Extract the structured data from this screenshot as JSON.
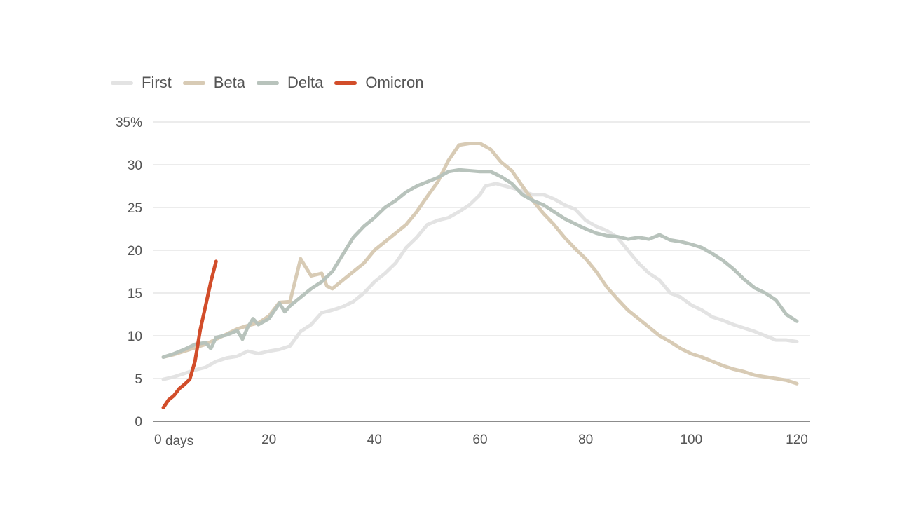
{
  "chart_data": {
    "type": "line",
    "xlim": [
      0,
      120
    ],
    "ylim": [
      0,
      35
    ],
    "x_ticks": [
      0,
      20,
      40,
      60,
      80,
      100,
      120
    ],
    "x_tick_labels": [
      "0",
      "20",
      "40",
      "60",
      "80",
      "100",
      "120"
    ],
    "x_unit": "days",
    "y_ticks": [
      0,
      5,
      10,
      15,
      20,
      25,
      30,
      35
    ],
    "y_tick_labels": [
      "0",
      "5",
      "10",
      "15",
      "20",
      "25",
      "30",
      "35%"
    ],
    "grid": "horizontal",
    "legend_position": "top-left",
    "series": [
      {
        "name": "First",
        "color": "#e3e3e3",
        "points": [
          [
            0,
            4.9
          ],
          [
            2,
            5.2
          ],
          [
            4,
            5.6
          ],
          [
            6,
            6
          ],
          [
            8,
            6.3
          ],
          [
            10,
            7
          ],
          [
            12,
            7.4
          ],
          [
            14,
            7.6
          ],
          [
            16,
            8.2
          ],
          [
            18,
            7.9
          ],
          [
            20,
            8.2
          ],
          [
            22,
            8.4
          ],
          [
            24,
            8.8
          ],
          [
            26,
            10.5
          ],
          [
            28,
            11.3
          ],
          [
            30,
            12.7
          ],
          [
            32,
            13
          ],
          [
            34,
            13.4
          ],
          [
            36,
            14
          ],
          [
            38,
            15
          ],
          [
            40,
            16.3
          ],
          [
            42,
            17.3
          ],
          [
            44,
            18.5
          ],
          [
            46,
            20.3
          ],
          [
            48,
            21.5
          ],
          [
            50,
            23
          ],
          [
            52,
            23.5
          ],
          [
            54,
            23.8
          ],
          [
            56,
            24.5
          ],
          [
            58,
            25.3
          ],
          [
            60,
            26.5
          ],
          [
            61,
            27.5
          ],
          [
            63,
            27.8
          ],
          [
            66,
            27.3
          ],
          [
            70,
            26.5
          ],
          [
            72,
            26.5
          ],
          [
            74,
            26
          ],
          [
            76,
            25.3
          ],
          [
            78,
            24.8
          ],
          [
            80,
            23.5
          ],
          [
            82,
            22.8
          ],
          [
            84,
            22.3
          ],
          [
            86,
            21.5
          ],
          [
            88,
            20
          ],
          [
            90,
            18.5
          ],
          [
            92,
            17.3
          ],
          [
            94,
            16.5
          ],
          [
            96,
            15
          ],
          [
            98,
            14.5
          ],
          [
            100,
            13.6
          ],
          [
            102,
            13
          ],
          [
            104,
            12.2
          ],
          [
            106,
            11.8
          ],
          [
            108,
            11.3
          ],
          [
            110,
            10.9
          ],
          [
            112,
            10.5
          ],
          [
            114,
            10
          ],
          [
            116,
            9.5
          ],
          [
            118,
            9.5
          ],
          [
            120,
            9.3
          ]
        ]
      },
      {
        "name": "Beta",
        "color": "#d8cbb5",
        "points": [
          [
            0,
            7.5
          ],
          [
            2,
            7.8
          ],
          [
            4,
            8.2
          ],
          [
            6,
            8.6
          ],
          [
            8,
            9
          ],
          [
            10,
            9.6
          ],
          [
            12,
            10.2
          ],
          [
            14,
            10.8
          ],
          [
            16,
            11.2
          ],
          [
            18,
            11.5
          ],
          [
            20,
            12.3
          ],
          [
            22,
            13.9
          ],
          [
            24,
            14
          ],
          [
            26,
            19
          ],
          [
            28,
            17
          ],
          [
            30,
            17.3
          ],
          [
            31,
            15.8
          ],
          [
            32,
            15.5
          ],
          [
            34,
            16.5
          ],
          [
            36,
            17.5
          ],
          [
            38,
            18.5
          ],
          [
            40,
            20
          ],
          [
            42,
            21
          ],
          [
            44,
            22
          ],
          [
            46,
            23
          ],
          [
            48,
            24.5
          ],
          [
            50,
            26.3
          ],
          [
            52,
            28
          ],
          [
            54,
            30.5
          ],
          [
            56,
            32.3
          ],
          [
            58,
            32.5
          ],
          [
            60,
            32.5
          ],
          [
            62,
            31.8
          ],
          [
            64,
            30.3
          ],
          [
            66,
            29.3
          ],
          [
            68,
            27.5
          ],
          [
            70,
            25.8
          ],
          [
            72,
            24.3
          ],
          [
            74,
            23
          ],
          [
            76,
            21.5
          ],
          [
            78,
            20.2
          ],
          [
            80,
            19
          ],
          [
            82,
            17.5
          ],
          [
            84,
            15.7
          ],
          [
            86,
            14.3
          ],
          [
            88,
            13
          ],
          [
            90,
            12
          ],
          [
            92,
            11
          ],
          [
            94,
            10
          ],
          [
            96,
            9.3
          ],
          [
            98,
            8.5
          ],
          [
            100,
            7.9
          ],
          [
            102,
            7.5
          ],
          [
            104,
            7
          ],
          [
            106,
            6.5
          ],
          [
            108,
            6.1
          ],
          [
            110,
            5.8
          ],
          [
            112,
            5.4
          ],
          [
            114,
            5.2
          ],
          [
            116,
            5
          ],
          [
            118,
            4.8
          ],
          [
            120,
            4.4
          ]
        ]
      },
      {
        "name": "Delta",
        "color": "#b8c3bc",
        "points": [
          [
            0,
            7.5
          ],
          [
            2,
            7.9
          ],
          [
            4,
            8.4
          ],
          [
            6,
            9
          ],
          [
            8,
            9.2
          ],
          [
            9,
            8.5
          ],
          [
            10,
            9.8
          ],
          [
            12,
            10.1
          ],
          [
            14,
            10.6
          ],
          [
            15,
            9.6
          ],
          [
            16,
            11
          ],
          [
            17,
            12
          ],
          [
            18,
            11.3
          ],
          [
            20,
            12
          ],
          [
            22,
            13.8
          ],
          [
            23,
            12.8
          ],
          [
            24,
            13.5
          ],
          [
            26,
            14.5
          ],
          [
            28,
            15.5
          ],
          [
            30,
            16.3
          ],
          [
            32,
            17.5
          ],
          [
            34,
            19.5
          ],
          [
            36,
            21.5
          ],
          [
            38,
            22.8
          ],
          [
            40,
            23.8
          ],
          [
            42,
            25
          ],
          [
            44,
            25.8
          ],
          [
            46,
            26.8
          ],
          [
            48,
            27.5
          ],
          [
            50,
            28
          ],
          [
            52,
            28.5
          ],
          [
            54,
            29.2
          ],
          [
            56,
            29.4
          ],
          [
            58,
            29.3
          ],
          [
            60,
            29.2
          ],
          [
            62,
            29.2
          ],
          [
            64,
            28.6
          ],
          [
            66,
            27.8
          ],
          [
            68,
            26.5
          ],
          [
            70,
            25.8
          ],
          [
            72,
            25.3
          ],
          [
            74,
            24.5
          ],
          [
            76,
            23.7
          ],
          [
            78,
            23.1
          ],
          [
            80,
            22.5
          ],
          [
            82,
            22
          ],
          [
            84,
            21.7
          ],
          [
            86,
            21.6
          ],
          [
            88,
            21.3
          ],
          [
            90,
            21.5
          ],
          [
            92,
            21.3
          ],
          [
            94,
            21.8
          ],
          [
            96,
            21.2
          ],
          [
            98,
            21
          ],
          [
            100,
            20.7
          ],
          [
            102,
            20.3
          ],
          [
            104,
            19.6
          ],
          [
            106,
            18.8
          ],
          [
            108,
            17.8
          ],
          [
            110,
            16.6
          ],
          [
            112,
            15.6
          ],
          [
            114,
            15
          ],
          [
            116,
            14.2
          ],
          [
            118,
            12.5
          ],
          [
            120,
            11.7
          ]
        ]
      },
      {
        "name": "Omicron",
        "color": "#d24d2a",
        "points": [
          [
            0,
            1.6
          ],
          [
            1,
            2.5
          ],
          [
            2,
            3
          ],
          [
            3,
            3.8
          ],
          [
            4,
            4.3
          ],
          [
            5,
            4.9
          ],
          [
            6,
            7
          ],
          [
            7,
            10.7
          ],
          [
            8,
            13.5
          ],
          [
            9,
            16.3
          ],
          [
            10,
            18.7
          ]
        ]
      }
    ]
  }
}
